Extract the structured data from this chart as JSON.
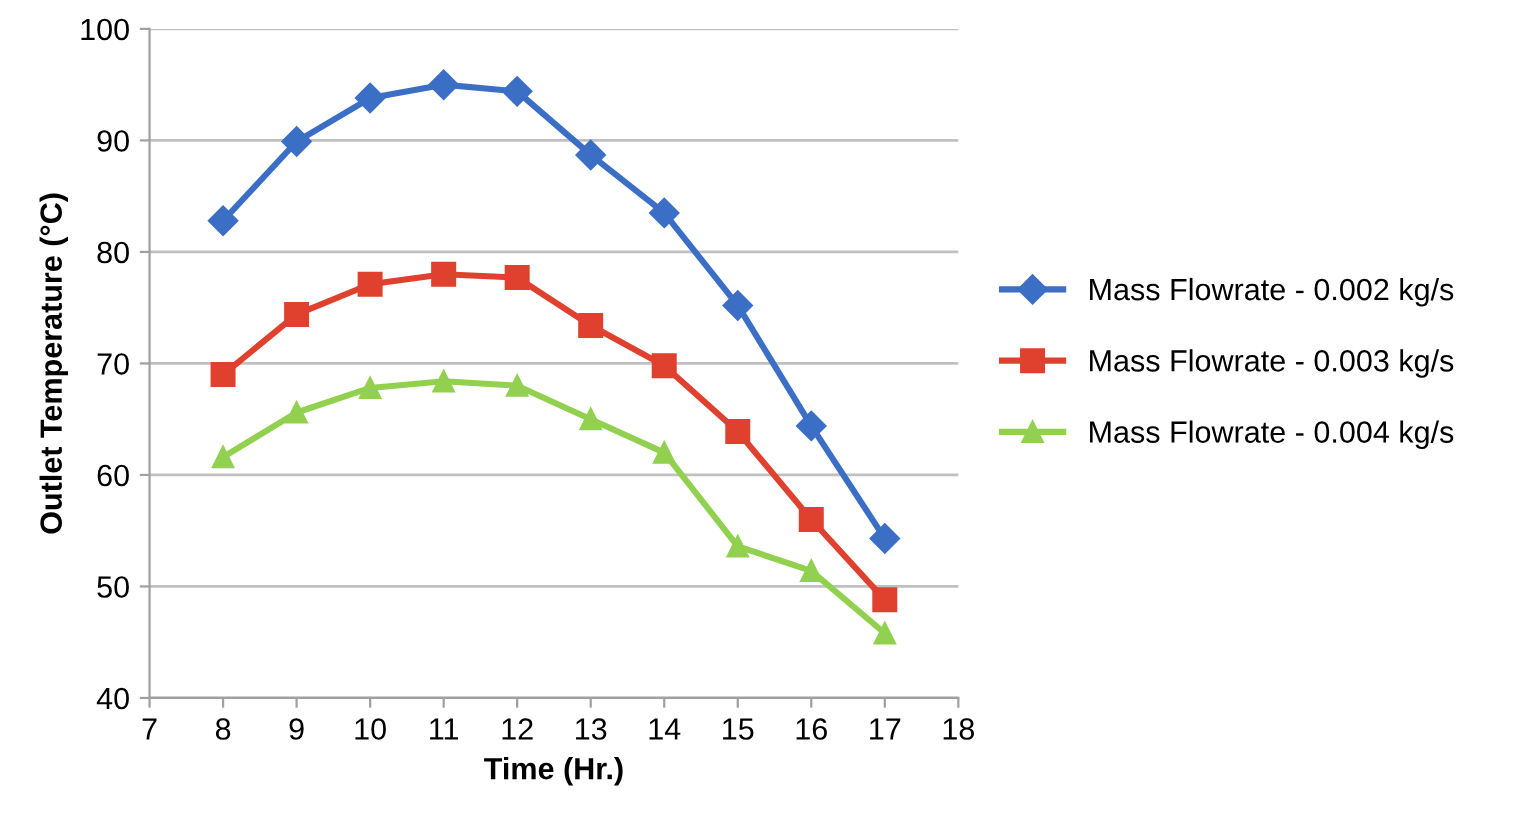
{
  "chart_data": {
    "type": "line",
    "xlabel": "Time (Hr.)",
    "ylabel": "Outlet Temperature (°C)",
    "x": [
      8,
      9,
      10,
      11,
      12,
      13,
      14,
      15,
      16,
      17
    ],
    "series": [
      {
        "name": "Mass Flowrate - 0.002 kg/s",
        "color": "#3b6fc6",
        "marker": "diamond",
        "values": [
          82.8,
          89.9,
          93.8,
          95.0,
          94.4,
          88.7,
          83.5,
          75.2,
          64.4,
          54.3
        ]
      },
      {
        "name": "Mass Flowrate - 0.003 kg/s",
        "color": "#e0402e",
        "marker": "square",
        "values": [
          69.0,
          74.4,
          77.1,
          78.0,
          77.7,
          73.4,
          69.8,
          63.9,
          56.0,
          48.8
        ]
      },
      {
        "name": "Mass Flowrate - 0.004 kg/s",
        "color": "#92d050",
        "marker": "triangle",
        "values": [
          61.6,
          65.6,
          67.8,
          68.4,
          68.0,
          65.0,
          62.0,
          53.6,
          51.4,
          45.8
        ]
      }
    ],
    "xlim": [
      7,
      18
    ],
    "xticks": [
      7,
      8,
      9,
      10,
      11,
      12,
      13,
      14,
      15,
      16,
      17,
      18
    ],
    "ylim": [
      40,
      100
    ],
    "yticks": [
      40,
      50,
      60,
      70,
      80,
      90,
      100
    ],
    "grid": "y",
    "legend": "right",
    "line_style": "solid"
  }
}
